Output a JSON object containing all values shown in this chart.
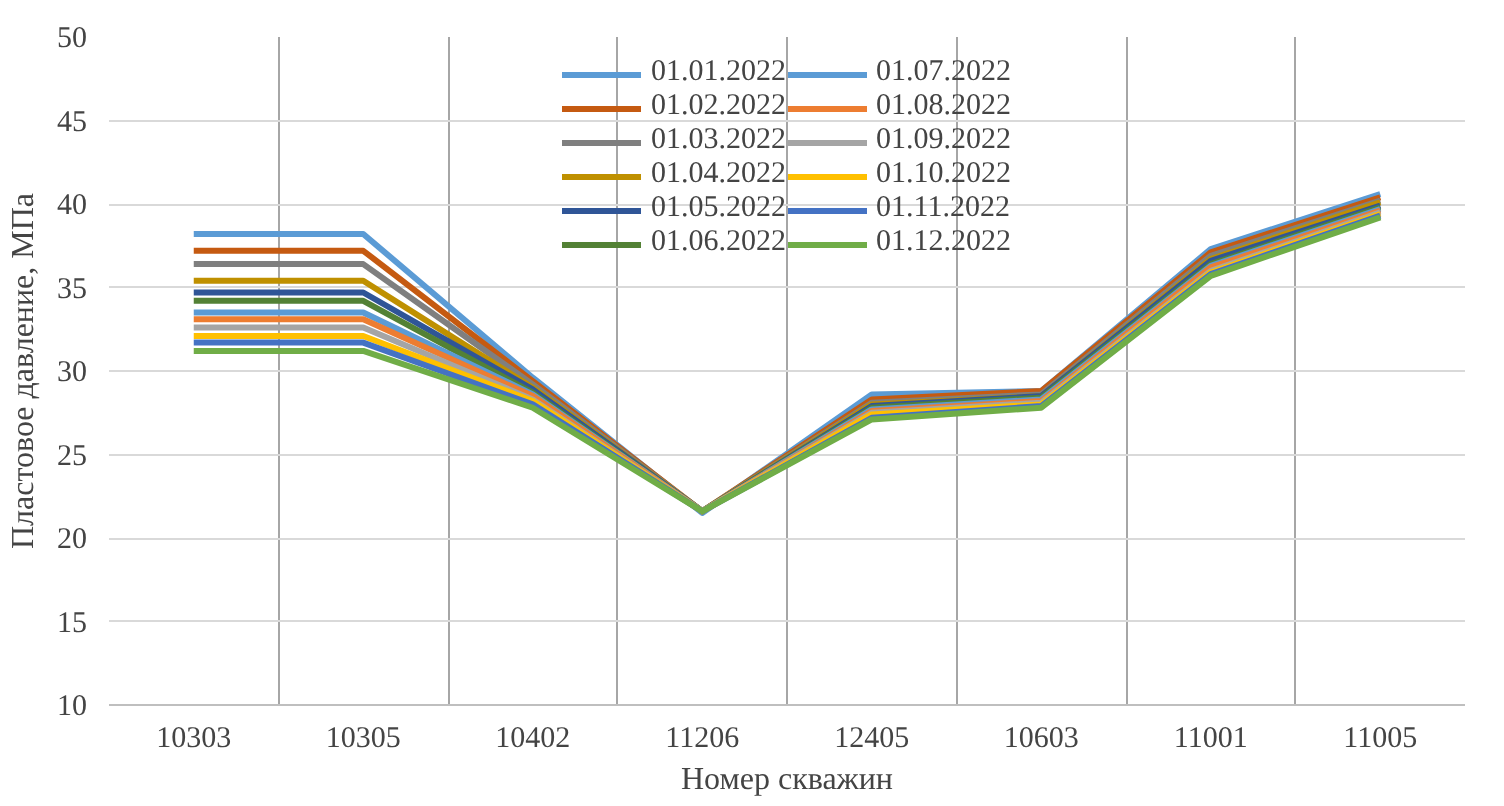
{
  "chart_data": {
    "type": "line",
    "xlabel": "Номер скважин",
    "ylabel": "Пластовое давление, МПа",
    "categories": [
      "10303",
      "10305",
      "10402",
      "11206",
      "12405",
      "10603",
      "11001",
      "11005"
    ],
    "ylim": [
      10,
      50
    ],
    "yticks": [
      10,
      15,
      20,
      25,
      30,
      35,
      40,
      45,
      50
    ],
    "grid": true,
    "legend": "top",
    "marker": "none",
    "line_style": "solid",
    "series": [
      {
        "name": "01.01.2022",
        "color": "#5b9bd5",
        "values": [
          38.2,
          38.2,
          29.6,
          21.5,
          28.6,
          28.8,
          37.3,
          40.6
        ]
      },
      {
        "name": "01.02.2022",
        "color": "#c55a11",
        "values": [
          37.2,
          37.2,
          29.4,
          21.6,
          28.3,
          28.8,
          37.1,
          40.4
        ]
      },
      {
        "name": "01.03.2022",
        "color": "#7f7f7f",
        "values": [
          36.4,
          36.4,
          29.2,
          21.6,
          28.1,
          28.6,
          36.9,
          40.2
        ]
      },
      {
        "name": "01.04.2022",
        "color": "#bf9000",
        "values": [
          35.4,
          35.4,
          29.0,
          21.6,
          28.0,
          28.5,
          36.7,
          40.1
        ]
      },
      {
        "name": "01.05.2022",
        "color": "#2f5597",
        "values": [
          34.7,
          34.7,
          28.9,
          21.6,
          27.9,
          28.5,
          36.6,
          39.9
        ]
      },
      {
        "name": "01.06.2022",
        "color": "#538135",
        "values": [
          34.2,
          34.2,
          28.7,
          21.6,
          27.8,
          28.4,
          36.4,
          39.8
        ]
      },
      {
        "name": "01.07.2022",
        "color": "#5b9bd5",
        "values": [
          33.5,
          33.5,
          28.6,
          21.6,
          27.7,
          28.3,
          36.3,
          39.7
        ]
      },
      {
        "name": "01.08.2022",
        "color": "#ed7d31",
        "values": [
          33.1,
          33.1,
          28.5,
          21.6,
          27.6,
          28.2,
          36.2,
          39.6
        ]
      },
      {
        "name": "01.09.2022",
        "color": "#a5a5a5",
        "values": [
          32.6,
          32.6,
          28.3,
          21.6,
          27.5,
          28.1,
          36.0,
          39.5
        ]
      },
      {
        "name": "01.10.2022",
        "color": "#ffc000",
        "values": [
          32.1,
          32.1,
          28.2,
          21.6,
          27.4,
          28.0,
          35.9,
          39.4
        ]
      },
      {
        "name": "01.11.2022",
        "color": "#4472c4",
        "values": [
          31.7,
          31.7,
          28.0,
          21.6,
          27.2,
          27.9,
          35.8,
          39.3
        ]
      },
      {
        "name": "01.12.2022",
        "color": "#70ad47",
        "values": [
          31.2,
          31.2,
          27.8,
          21.6,
          27.1,
          27.8,
          35.7,
          39.2
        ]
      }
    ]
  }
}
